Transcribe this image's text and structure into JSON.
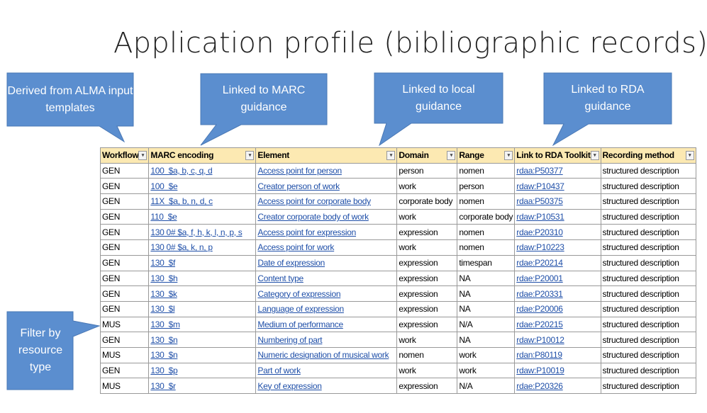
{
  "title": "Application profile (bibliographic records)",
  "callouts": [
    "Derived from ALMA input templates",
    "Linked to MARC guidance",
    "Linked to local guidance",
    "Linked to RDA guidance",
    "Filter by resource type"
  ],
  "table": {
    "header": [
      "Workflow",
      "MARC encoding",
      "Element",
      "Domain",
      "Range",
      "Link to RDA Toolkit",
      "Recording method"
    ],
    "rows": [
      [
        "GEN",
        "100  $a, b, c, q, d",
        "Access point for person",
        "person",
        "nomen",
        "rdaa:P50377",
        "structured description"
      ],
      [
        "GEN",
        "100  $e",
        "Creator person of work",
        "work",
        "person",
        "rdaw:P10437",
        "structured description"
      ],
      [
        "GEN",
        "11X  $a, b, n, d, c",
        "Access point for corporate body",
        "corporate body",
        "nomen",
        "rdaa:P50375",
        "structured description"
      ],
      [
        "GEN",
        "110  $e",
        "Creator corporate body of work",
        "work",
        "corporate body",
        "rdaw:P10531",
        "structured description"
      ],
      [
        "GEN",
        "130 0# $a, f, h, k, l, n, p, s",
        "Access point for expression",
        "expression",
        "nomen",
        "rdae:P20310",
        "structured description"
      ],
      [
        "GEN",
        "130 0# $a, k, n, p",
        "Access point for work",
        "work",
        "nomen",
        "rdaw:P10223",
        "structured description"
      ],
      [
        "GEN",
        "130  $f",
        "Date of expression",
        "expression",
        "timespan",
        "rdae:P20214",
        "structured description"
      ],
      [
        "GEN",
        "130  $h",
        "Content type",
        "expression",
        "NA",
        "rdae:P20001",
        "structured description"
      ],
      [
        "GEN",
        "130  $k",
        "Category of expression",
        "expression",
        "NA",
        "rdae:P20331",
        "structured description"
      ],
      [
        "GEN",
        "130  $l",
        "Language of expression",
        "expression",
        "NA",
        "rdae:P20006",
        "structured description"
      ],
      [
        "MUS",
        "130  $m",
        "Medium of performance",
        "expression",
        "N/A",
        "rdae:P20215",
        "structured description"
      ],
      [
        "GEN",
        "130  $n",
        "Numbering of part",
        "work",
        "NA",
        "rdaw:P10012",
        "structured description"
      ],
      [
        "MUS",
        "130  $n",
        "Numeric designation of musical work",
        "nomen",
        "work",
        "rdan:P80119",
        "structured description"
      ],
      [
        "GEN",
        "130  $p",
        "Part of work",
        "work",
        "work",
        "rdaw:P10019",
        "structured description"
      ],
      [
        "MUS",
        "130  $r",
        "Key of expression",
        "expression",
        "N/A",
        "rdae:P20326",
        "structured description"
      ]
    ]
  }
}
